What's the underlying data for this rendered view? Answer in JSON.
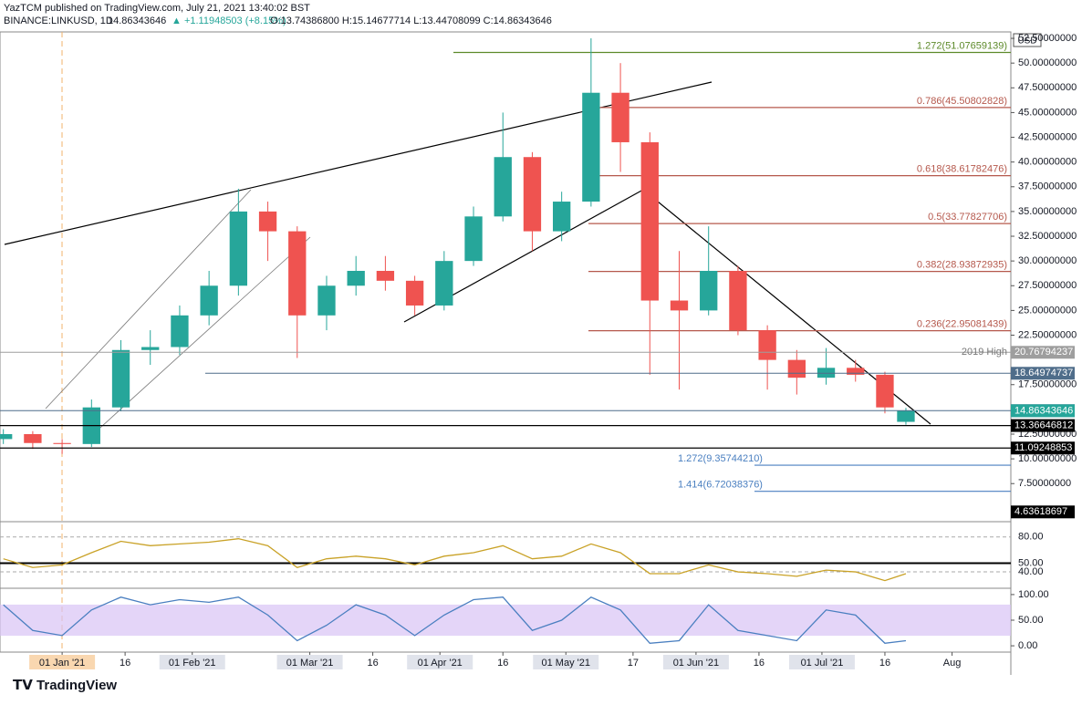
{
  "header": {
    "author": "YazTCM published on TradingView.com, July 21, 2021 13:40:02 BST",
    "symbol": "BINANCE:LINKUSD, 1D",
    "last": "14.86343646",
    "change": "▲ +1.11948503 (+8.15%)",
    "ohlc": "O:13.74386800 H:15.14677714 L:13.44708099 C:14.86343646"
  },
  "footer": {
    "brand": "TradingView"
  },
  "chart_data": {
    "type": "candlestick",
    "currency": "USD",
    "up_color": "#26a69a",
    "down_color": "#ef5350",
    "days": [
      -14,
      -7,
      0,
      7,
      14,
      21,
      28,
      35,
      42,
      49,
      56,
      63,
      70,
      77,
      84,
      91,
      98,
      105,
      112,
      119,
      126,
      133,
      140,
      147,
      154,
      161,
      168,
      175,
      182,
      189,
      196,
      201
    ],
    "open": [
      12.0,
      12.5,
      11.6,
      11.5,
      15.2,
      21.0,
      21.3,
      24.5,
      27.5,
      35.0,
      33.0,
      24.5,
      27.5,
      29.0,
      28.0,
      25.5,
      30.0,
      34.5,
      40.5,
      33.0,
      36.0,
      47.0,
      42.0,
      26.0,
      25.0,
      29.0,
      23.0,
      20.0,
      18.2,
      19.2,
      18.5,
      13.74
    ],
    "high": [
      13.0,
      12.8,
      12.0,
      16.0,
      22.0,
      23.0,
      25.5,
      29.0,
      37.3,
      36.0,
      33.5,
      28.5,
      30.5,
      30.5,
      28.5,
      31.0,
      35.5,
      45.0,
      41.0,
      37.0,
      52.5,
      50.0,
      43.0,
      31.0,
      33.5,
      29.5,
      23.5,
      21.0,
      21.2,
      20.0,
      18.8,
      15.15
    ],
    "low": [
      11.5,
      11.0,
      10.5,
      11.2,
      14.8,
      19.5,
      20.5,
      23.5,
      26.5,
      30.0,
      20.2,
      23.0,
      26.5,
      27.0,
      24.5,
      25.0,
      29.5,
      34.0,
      31.0,
      32.0,
      35.5,
      39.0,
      18.5,
      17.0,
      24.5,
      22.5,
      17.0,
      16.5,
      17.5,
      17.8,
      14.6,
      13.45
    ],
    "close": [
      12.5,
      11.6,
      11.5,
      15.2,
      21.0,
      21.3,
      24.5,
      27.5,
      35.0,
      33.0,
      24.5,
      27.5,
      29.0,
      28.0,
      25.5,
      30.0,
      34.5,
      40.5,
      33.0,
      36.0,
      47.0,
      42.0,
      26.0,
      25.0,
      29.0,
      23.0,
      20.0,
      18.2,
      19.2,
      18.5,
      15.2,
      14.86
    ],
    "ylim": [
      3.65,
      53.15
    ],
    "yticks": [
      {
        "value": 52.5,
        "label": "52.50000000"
      },
      {
        "value": 50,
        "label": "50.00000000"
      },
      {
        "value": 47.5,
        "label": "47.50000000"
      },
      {
        "value": 45,
        "label": "45.00000000"
      },
      {
        "value": 42.5,
        "label": "42.50000000"
      },
      {
        "value": 40,
        "label": "40.00000000"
      },
      {
        "value": 37.5,
        "label": "37.50000000"
      },
      {
        "value": 35,
        "label": "35.00000000"
      },
      {
        "value": 32.5,
        "label": "32.50000000"
      },
      {
        "value": 30,
        "label": "30.00000000"
      },
      {
        "value": 27.5,
        "label": "27.50000000"
      },
      {
        "value": 25,
        "label": "25.00000000"
      },
      {
        "value": 22.5,
        "label": "22.50000000"
      },
      {
        "value": 17.5,
        "label": "17.50000000"
      },
      {
        "value": 12.5,
        "label": "12.50000000"
      },
      {
        "value": 10,
        "label": "10.00000000"
      },
      {
        "value": 7.5,
        "label": "7.50000000"
      }
    ],
    "xlim": [
      -14.8,
      226
    ],
    "xticks": [
      {
        "value": 0,
        "label": "01 Jan '21"
      },
      {
        "value": 15,
        "label": "16"
      },
      {
        "value": 31,
        "label": "01 Feb '21"
      },
      {
        "value": 59,
        "label": "01 Mar '21"
      },
      {
        "value": 74,
        "label": "16"
      },
      {
        "value": 90,
        "label": "01 Apr '21"
      },
      {
        "value": 105,
        "label": "16"
      },
      {
        "value": 120,
        "label": "01 May '21"
      },
      {
        "value": 136,
        "label": "17"
      },
      {
        "value": 151,
        "label": "01 Jun '21"
      },
      {
        "value": 166,
        "label": "16"
      },
      {
        "value": 181,
        "label": "01 Jul '21"
      },
      {
        "value": 196,
        "label": "16"
      },
      {
        "value": 212,
        "label": "Aug"
      }
    ],
    "fib_levels": [
      {
        "label": "1.272(51.07659139)",
        "value": 51.07659139,
        "color": "#5d8a2a"
      },
      {
        "label": "0.786(45.50802828)",
        "value": 45.50802828,
        "color": "#b5584c"
      },
      {
        "label": "0.618(38.61782476)",
        "value": 38.61782476,
        "color": "#b5584c"
      },
      {
        "label": "0.5(33.77827706)",
        "value": 33.77827706,
        "color": "#b5584c"
      },
      {
        "label": "0.382(28.93872935)",
        "value": 28.93872935,
        "color": "#b5584c"
      },
      {
        "label": "0.236(22.95081439)",
        "value": 22.95081439,
        "color": "#b5584c"
      },
      {
        "label": "1.272(9.35744210)",
        "value": 9.3574421,
        "color": "#4a7fc0"
      },
      {
        "label": "1.414(6.72038376)",
        "value": 6.72038376,
        "color": "#4a7fc0"
      }
    ],
    "price_levels": [
      {
        "value": 20.76794237,
        "color": "#9e9e9e",
        "tag": "2019 High"
      },
      {
        "value": 18.64974737,
        "color": "#4f6d8a"
      },
      {
        "value": 14.87200189,
        "color": "#4f6d8a"
      },
      {
        "value": 14.86343646,
        "color": "#26a69a"
      },
      {
        "value": 13.36646812,
        "color": "#000000"
      },
      {
        "value": 11.09248853,
        "color": "#000000"
      },
      {
        "value": 4.63618697,
        "color": "#000000"
      }
    ],
    "rsi": {
      "color": "#c9a227",
      "values": [
        55,
        45,
        48,
        62,
        75,
        70,
        72,
        74,
        78,
        70,
        45,
        55,
        58,
        55,
        48,
        58,
        62,
        70,
        55,
        58,
        72,
        62,
        38,
        38,
        48,
        40,
        38,
        35,
        42,
        40,
        30,
        38
      ],
      "ylim": [
        21.25,
        97.5
      ],
      "yticks": [
        {
          "value": 80,
          "label": "80.00"
        },
        {
          "value": 50,
          "label": "50.00"
        },
        {
          "value": 40,
          "label": "40.00"
        }
      ]
    },
    "stoch": {
      "color": "#4a7fc0",
      "band_color": "#d9c3f5",
      "values": [
        80,
        30,
        20,
        70,
        95,
        80,
        90,
        85,
        95,
        60,
        10,
        40,
        80,
        60,
        20,
        60,
        90,
        95,
        30,
        50,
        95,
        70,
        5,
        10,
        80,
        30,
        20,
        10,
        70,
        60,
        5,
        10
      ],
      "ylim": [
        -12.3,
        112.3
      ],
      "yticks": [
        {
          "value": 100,
          "label": "100.00"
        },
        {
          "value": 50,
          "label": "50.00"
        },
        {
          "value": 0,
          "label": "0.00"
        }
      ]
    }
  }
}
